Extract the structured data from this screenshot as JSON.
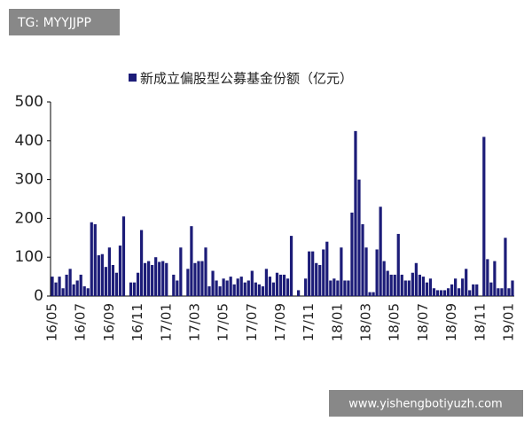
{
  "watermark_top": "TG: MYYJJPP",
  "watermark_bottom": "www.yishengbotiyuzh.com",
  "chart_data": {
    "type": "bar",
    "categories": [
      "16/05",
      null,
      null,
      null,
      null,
      null,
      null,
      null,
      "16/07",
      null,
      null,
      null,
      null,
      null,
      null,
      null,
      "16/09",
      null,
      null,
      null,
      null,
      null,
      null,
      null,
      "16/11",
      null,
      null,
      null,
      null,
      null,
      null,
      null,
      "17/01",
      null,
      null,
      null,
      null,
      null,
      null,
      null,
      "17/03",
      null,
      null,
      null,
      null,
      null,
      null,
      null,
      "17/05",
      null,
      null,
      null,
      null,
      null,
      null,
      null,
      "17/07",
      null,
      null,
      null,
      null,
      null,
      null,
      null,
      "17/09",
      null,
      null,
      null,
      null,
      null,
      null,
      null,
      "17/11",
      null,
      null,
      null,
      null,
      null,
      null,
      null,
      "18/01",
      null,
      null,
      null,
      null,
      null,
      null,
      null,
      "18/03",
      null,
      null,
      null,
      null,
      null,
      null,
      null,
      "18/05",
      null,
      null,
      null,
      null,
      null,
      null,
      null,
      "18/07",
      null,
      null,
      null,
      null,
      null,
      null,
      null,
      "18/09",
      null,
      null,
      null,
      null,
      null,
      null,
      null,
      "18/11",
      null,
      null,
      null,
      null,
      null,
      null,
      null,
      "19/01",
      null
    ],
    "series": [
      {
        "name": "新成立偏股型公募基金份额（亿元）",
        "color": "#1c1c78",
        "values": [
          50,
          35,
          50,
          20,
          55,
          70,
          30,
          40,
          55,
          25,
          20,
          190,
          185,
          105,
          108,
          75,
          125,
          80,
          60,
          130,
          205,
          0,
          35,
          35,
          60,
          170,
          85,
          90,
          80,
          100,
          88,
          90,
          85,
          0,
          55,
          40,
          125,
          0,
          70,
          180,
          85,
          90,
          90,
          125,
          25,
          65,
          40,
          25,
          45,
          40,
          50,
          30,
          45,
          50,
          35,
          40,
          65,
          35,
          30,
          25,
          70,
          50,
          35,
          60,
          55,
          55,
          45,
          155,
          0,
          15,
          0,
          45,
          115,
          115,
          85,
          80,
          120,
          140,
          40,
          45,
          40,
          125,
          40,
          40,
          215,
          425,
          300,
          185,
          125,
          10,
          10,
          120,
          230,
          90,
          65,
          55,
          55,
          160,
          55,
          40,
          40,
          60,
          85,
          55,
          50,
          35,
          45,
          20,
          15,
          15,
          15,
          20,
          30,
          45,
          20,
          45,
          70,
          15,
          30,
          30,
          0,
          410,
          95,
          35,
          90,
          20,
          20,
          150,
          20,
          40
        ]
      }
    ],
    "ylim": [
      0,
      500
    ],
    "yticks": [
      0,
      100,
      200,
      300,
      400,
      500
    ],
    "legend": "top"
  }
}
